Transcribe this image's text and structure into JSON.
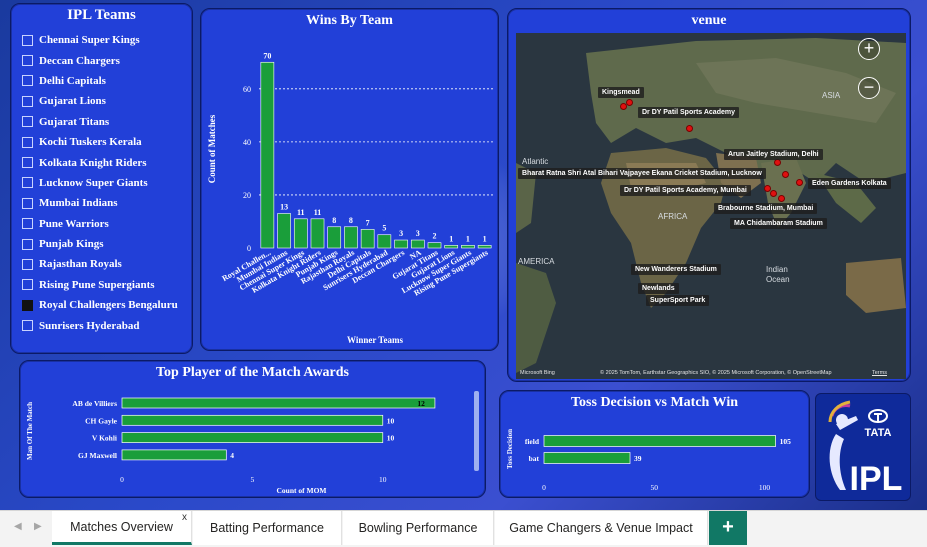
{
  "slicer": {
    "title": "IPL Teams",
    "items": [
      {
        "label": "Chennai Super Kings",
        "checked": false
      },
      {
        "label": "Deccan Chargers",
        "checked": false
      },
      {
        "label": "Delhi Capitals",
        "checked": false
      },
      {
        "label": "Gujarat Lions",
        "checked": false
      },
      {
        "label": "Gujarat Titans",
        "checked": false
      },
      {
        "label": "Kochi Tuskers Kerala",
        "checked": false
      },
      {
        "label": "Kolkata Knight Riders",
        "checked": false
      },
      {
        "label": "Lucknow Super Giants",
        "checked": false
      },
      {
        "label": "Mumbai Indians",
        "checked": false
      },
      {
        "label": "Pune Warriors",
        "checked": false
      },
      {
        "label": "Punjab Kings",
        "checked": false
      },
      {
        "label": "Rajasthan Royals",
        "checked": false
      },
      {
        "label": "Rising Pune Supergiants",
        "checked": false
      },
      {
        "label": "Royal Challengers Bengaluru",
        "checked": true
      },
      {
        "label": "Sunrisers Hyderabad",
        "checked": false
      }
    ]
  },
  "venue": {
    "title": "venue",
    "zoom_in": "+",
    "zoom_out": "−",
    "geo_labels": [
      "ASIA",
      "Atlantic",
      "AFRICA",
      "AMERICA",
      "Indian",
      "Ocean"
    ],
    "venues": [
      "Kingsmead",
      "Dr DY Patil Sports Academy",
      "Arun Jaitley Stadium, Delhi",
      "Bharat Ratna Shri Atal Bihari Vajpayee Ekana Cricket Stadium, Lucknow",
      "Eden Gardens Kolkata",
      "Dr DY Patil Sports Academy, Mumbai",
      "Brabourne Stadium, Mumbai",
      "MA Chidambaram Stadium",
      "New Wanderers Stadium",
      "Newlands",
      "SuperSport Park"
    ],
    "brand": "Microsoft Bing",
    "credit": "© 2025 TomTom, Earthstar Geographics SIO, © 2025 Microsoft Corporation, © OpenStreetMap",
    "terms": "Terms"
  },
  "logo": {
    "line1": "TATA",
    "line2": "IPL"
  },
  "chart_data": [
    {
      "type": "bar",
      "title": "Wins By Team",
      "xlabel": "Winner Teams",
      "ylabel": "Count of Matches",
      "ylim": [
        0,
        75
      ],
      "yticks": [
        0,
        20,
        40,
        60
      ],
      "grid": true,
      "categories": [
        "Royal Challen...",
        "Mumbai Indians",
        "Chennai Super Kings",
        "Kolkata Knight Riders",
        "Punjab Kings",
        "Rajasthan Royals",
        "Delhi Capitals",
        "Sunrisers Hyderabad",
        "Deccan Chargers",
        "NA",
        "Gujarat Titans",
        "Gujarat Lions",
        "Lucknow Super Giants",
        "Rising Pune Supergiants"
      ],
      "values": [
        70,
        13,
        11,
        11,
        8,
        8,
        7,
        5,
        3,
        3,
        2,
        1,
        1,
        1
      ],
      "color": "#1a9e3a"
    },
    {
      "type": "bar",
      "orientation": "horizontal",
      "title": "Top Player of the Match Awards",
      "xlabel": "Count of MOM",
      "ylabel": "Man Of The Match",
      "xlim": [
        0,
        13
      ],
      "xticks": [
        0,
        5,
        10
      ],
      "categories": [
        "AB de Villiers",
        "CH Gayle",
        "V Kohli",
        "GJ Maxwell"
      ],
      "values": [
        12,
        10,
        10,
        4
      ],
      "color": "#1a9e3a"
    },
    {
      "type": "bar",
      "orientation": "horizontal",
      "title": "Toss Decision vs Match Win",
      "ylabel": "Toss Decision",
      "xlim": [
        0,
        107
      ],
      "xticks": [
        0,
        50,
        100
      ],
      "categories": [
        "field",
        "bat"
      ],
      "values": [
        105,
        39
      ],
      "color": "#1a9e3a"
    }
  ],
  "tabs": {
    "items": [
      {
        "label": "Matches Overview",
        "active": true
      },
      {
        "label": "Batting Performance",
        "active": false
      },
      {
        "label": "Bowling Performance",
        "active": false
      },
      {
        "label": "Game Changers & Venue Impact",
        "active": false
      }
    ],
    "close_glyph": "x",
    "add_glyph": "+",
    "prev_glyph": "◀",
    "next_glyph": "▶"
  }
}
